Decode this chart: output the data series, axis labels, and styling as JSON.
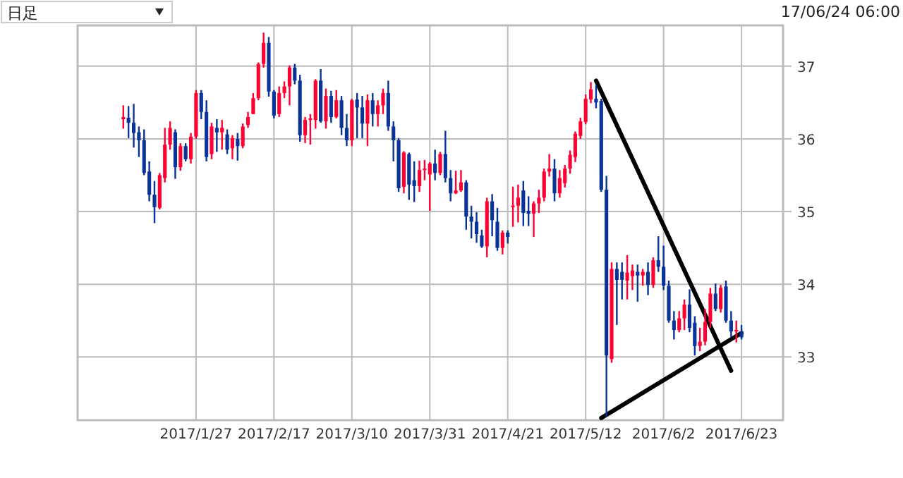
{
  "chart_data": {
    "type": "candlestick",
    "title": "日足",
    "subtitle": "17/06/24 06:00",
    "categories": [
      null,
      null,
      null,
      null,
      null,
      null,
      null,
      null,
      null,
      null,
      null,
      null,
      null,
      null,
      "2017/1/27",
      null,
      null,
      null,
      null,
      null,
      null,
      null,
      null,
      null,
      null,
      null,
      null,
      null,
      null,
      "2017/2/17",
      null,
      null,
      null,
      null,
      null,
      null,
      null,
      null,
      null,
      null,
      null,
      null,
      null,
      null,
      "2017/3/10",
      null,
      null,
      null,
      null,
      null,
      null,
      null,
      null,
      null,
      null,
      null,
      null,
      null,
      null,
      "2017/3/31",
      null,
      null,
      null,
      null,
      null,
      null,
      null,
      null,
      null,
      null,
      null,
      null,
      null,
      null,
      "2017/4/21",
      null,
      null,
      null,
      null,
      null,
      null,
      null,
      null,
      null,
      null,
      null,
      null,
      null,
      null,
      "2017/5/12",
      null,
      null,
      null,
      null,
      null,
      null,
      null,
      null,
      null,
      null,
      null,
      null,
      null,
      null,
      "2017/6/2",
      null,
      null,
      null,
      null,
      null,
      null,
      null,
      null,
      null,
      null,
      null,
      null,
      null,
      null,
      "2017/6/23"
    ],
    "ohlc": [
      [
        36.27,
        36.46,
        36.14,
        36.3
      ],
      [
        36.29,
        36.45,
        36.01,
        36.22
      ],
      [
        36.22,
        36.48,
        35.88,
        36.08
      ],
      [
        36.09,
        36.17,
        35.75,
        35.98
      ],
      [
        35.98,
        36.13,
        35.5,
        35.53
      ],
      [
        35.55,
        35.69,
        35.14,
        35.23
      ],
      [
        35.23,
        35.42,
        34.84,
        35.06
      ],
      [
        35.05,
        35.53,
        35.03,
        35.5
      ],
      [
        35.46,
        36.15,
        35.4,
        35.92
      ],
      [
        35.92,
        36.24,
        35.85,
        36.15
      ],
      [
        36.09,
        36.13,
        35.45,
        35.61
      ],
      [
        35.61,
        35.94,
        35.56,
        35.9
      ],
      [
        35.9,
        35.94,
        35.69,
        35.72
      ],
      [
        35.72,
        36.08,
        35.66,
        36.03
      ],
      [
        36.03,
        36.67,
        36.0,
        36.63
      ],
      [
        36.63,
        36.67,
        36.27,
        36.37
      ],
      [
        36.37,
        36.53,
        35.69,
        35.75
      ],
      [
        35.79,
        36.22,
        35.72,
        36.17
      ],
      [
        36.15,
        36.27,
        35.82,
        36.09
      ],
      [
        36.09,
        36.26,
        35.85,
        36.15
      ],
      [
        36.06,
        36.13,
        35.79,
        35.85
      ],
      [
        35.87,
        36.05,
        35.72,
        36.01
      ],
      [
        36.0,
        36.08,
        35.7,
        35.9
      ],
      [
        35.9,
        36.21,
        35.87,
        36.17
      ],
      [
        36.19,
        36.37,
        36.15,
        36.3
      ],
      [
        36.34,
        36.63,
        36.34,
        36.56
      ],
      [
        36.56,
        37.05,
        36.53,
        37.03
      ],
      [
        37.03,
        37.46,
        36.98,
        37.32
      ],
      [
        37.32,
        37.4,
        36.58,
        36.65
      ],
      [
        36.65,
        36.67,
        36.28,
        36.32
      ],
      [
        36.34,
        36.72,
        36.3,
        36.63
      ],
      [
        36.63,
        36.79,
        36.56,
        36.72
      ],
      [
        36.72,
        37.01,
        36.46,
        36.98
      ],
      [
        36.98,
        37.03,
        36.75,
        36.8
      ],
      [
        36.8,
        36.88,
        35.96,
        36.05
      ],
      [
        36.05,
        36.3,
        35.94,
        36.26
      ],
      [
        36.26,
        36.34,
        35.92,
        36.28
      ],
      [
        36.26,
        36.82,
        36.14,
        36.8
      ],
      [
        36.8,
        36.96,
        36.22,
        36.24
      ],
      [
        36.24,
        36.69,
        36.14,
        36.59
      ],
      [
        36.59,
        36.66,
        36.22,
        36.3
      ],
      [
        36.3,
        36.67,
        36.28,
        36.53
      ],
      [
        36.53,
        36.59,
        36.05,
        36.15
      ],
      [
        36.15,
        36.34,
        35.9,
        35.98
      ],
      [
        35.98,
        36.55,
        35.9,
        36.53
      ],
      [
        36.54,
        36.63,
        36.01,
        36.43
      ],
      [
        36.43,
        36.59,
        36.01,
        36.21
      ],
      [
        36.21,
        36.61,
        35.9,
        36.53
      ],
      [
        36.53,
        36.63,
        36.17,
        36.34
      ],
      [
        36.34,
        36.53,
        36.17,
        36.46
      ],
      [
        36.46,
        36.69,
        36.34,
        36.63
      ],
      [
        36.63,
        36.8,
        36.11,
        36.17
      ],
      [
        36.17,
        36.24,
        35.69,
        35.98
      ],
      [
        35.98,
        36.01,
        35.27,
        35.32
      ],
      [
        35.34,
        35.83,
        35.25,
        35.81
      ],
      [
        35.79,
        35.81,
        35.16,
        35.37
      ],
      [
        35.43,
        35.69,
        35.13,
        35.35
      ],
      [
        35.35,
        35.7,
        35.27,
        35.57
      ],
      [
        35.57,
        35.71,
        35.43,
        35.59
      ],
      [
        35.51,
        35.68,
        35.01,
        35.66
      ],
      [
        35.66,
        35.85,
        35.43,
        35.53
      ],
      [
        35.53,
        35.82,
        35.5,
        35.79
      ],
      [
        35.79,
        36.11,
        35.4,
        35.46
      ],
      [
        35.46,
        35.57,
        35.14,
        35.25
      ],
      [
        35.25,
        35.56,
        35.24,
        35.29
      ],
      [
        35.29,
        35.57,
        35.27,
        35.4
      ],
      [
        35.4,
        35.43,
        34.75,
        34.93
      ],
      [
        34.93,
        35.08,
        34.63,
        34.86
      ],
      [
        34.86,
        34.99,
        34.57,
        34.69
      ],
      [
        34.67,
        34.75,
        34.5,
        34.52
      ],
      [
        34.52,
        35.19,
        34.37,
        35.14
      ],
      [
        35.14,
        35.24,
        34.66,
        34.88
      ],
      [
        34.86,
        35.05,
        34.46,
        34.5
      ],
      [
        34.5,
        34.74,
        34.41,
        34.71
      ],
      [
        34.71,
        34.74,
        34.56,
        34.65
      ],
      [
        35.06,
        35.34,
        34.79,
        35.08
      ],
      [
        35.08,
        35.37,
        34.85,
        35.19
      ],
      [
        35.29,
        35.42,
        34.8,
        34.98
      ],
      [
        35.01,
        35.21,
        34.8,
        34.97
      ],
      [
        34.97,
        35.14,
        34.65,
        35.11
      ],
      [
        35.11,
        35.3,
        34.98,
        35.19
      ],
      [
        35.19,
        35.59,
        35.14,
        35.55
      ],
      [
        35.55,
        35.79,
        35.48,
        35.59
      ],
      [
        35.59,
        35.72,
        35.14,
        35.25
      ],
      [
        35.25,
        35.57,
        35.19,
        35.46
      ],
      [
        35.39,
        35.64,
        35.33,
        35.59
      ],
      [
        35.59,
        35.84,
        35.52,
        35.78
      ],
      [
        35.75,
        36.1,
        35.68,
        36.07
      ],
      [
        36.04,
        36.29,
        36.0,
        36.24
      ],
      [
        36.23,
        36.61,
        36.2,
        36.55
      ],
      [
        36.54,
        36.78,
        36.49,
        36.68
      ],
      [
        36.55,
        36.74,
        36.42,
        36.5
      ],
      [
        36.52,
        36.55,
        35.27,
        35.3
      ],
      [
        35.3,
        35.49,
        32.18,
        33.02
      ],
      [
        32.97,
        34.3,
        32.92,
        34.21
      ],
      [
        34.21,
        34.3,
        33.44,
        34.06
      ],
      [
        34.17,
        34.3,
        33.79,
        34.06
      ],
      [
        34.05,
        34.4,
        33.79,
        34.16
      ],
      [
        34.11,
        34.27,
        33.92,
        34.19
      ],
      [
        34.17,
        34.27,
        33.76,
        34.12
      ],
      [
        34.12,
        34.21,
        33.98,
        34.17
      ],
      [
        34.17,
        34.3,
        33.85,
        33.99
      ],
      [
        33.99,
        34.37,
        33.95,
        34.33
      ],
      [
        34.33,
        34.66,
        34.17,
        34.24
      ],
      [
        34.24,
        34.53,
        33.92,
        33.98
      ],
      [
        33.98,
        34.05,
        33.47,
        33.5
      ],
      [
        33.5,
        33.63,
        33.24,
        33.37
      ],
      [
        33.37,
        33.63,
        33.34,
        33.53
      ],
      [
        33.53,
        33.79,
        33.37,
        33.72
      ],
      [
        33.72,
        33.93,
        33.34,
        33.4
      ],
      [
        33.47,
        33.56,
        33.02,
        33.15
      ],
      [
        33.15,
        33.4,
        33.08,
        33.21
      ],
      [
        33.21,
        33.66,
        33.16,
        33.48
      ],
      [
        33.48,
        33.95,
        33.4,
        33.87
      ],
      [
        33.87,
        34.01,
        33.63,
        33.66
      ],
      [
        33.66,
        33.99,
        33.61,
        33.95
      ],
      [
        33.97,
        34.05,
        33.47,
        33.5
      ],
      [
        33.5,
        33.63,
        33.27,
        33.35
      ],
      [
        33.35,
        33.5,
        33.2,
        33.37
      ],
      [
        33.35,
        33.44,
        33.24,
        33.27
      ]
    ],
    "colors": [
      "#ff0033",
      "#0a3399",
      "#0a3399",
      "#0a3399",
      "#0a3399",
      "#0a3399",
      "#0a3399",
      "#ff0033",
      "#ff0033",
      "#ff0033",
      "#0a3399",
      "#ff0033",
      "#0a3399",
      "#ff0033",
      "#ff0033",
      "#0a3399",
      "#0a3399",
      "#ff0033",
      "#0a3399",
      "#ff0033",
      "#0a3399",
      "#ff0033",
      "#0a3399",
      "#ff0033",
      "#ff0033",
      "#ff0033",
      "#ff0033",
      "#ff0033",
      "#0a3399",
      "#0a3399",
      "#ff0033",
      "#ff0033",
      "#ff0033",
      "#0a3399",
      "#0a3399",
      "#ff0033",
      "#ff0033",
      "#ff0033",
      "#0a3399",
      "#ff0033",
      "#0a3399",
      "#ff0033",
      "#0a3399",
      "#0a3399",
      "#ff0033",
      "#0a3399",
      "#0a3399",
      "#ff0033",
      "#0a3399",
      "#ff0033",
      "#ff0033",
      "#0a3399",
      "#0a3399",
      "#0a3399",
      "#ff0033",
      "#0a3399",
      "#0a3399",
      "#ff0033",
      "#ff0033",
      "#ff0033",
      "#0a3399",
      "#ff0033",
      "#0a3399",
      "#0a3399",
      "#ff0033",
      "#ff0033",
      "#0a3399",
      "#0a3399",
      "#0a3399",
      "#0a3399",
      "#ff0033",
      "#0a3399",
      "#0a3399",
      "#ff0033",
      "#0a3399",
      "#ff0033",
      "#ff0033",
      "#0a3399",
      "#0a3399",
      "#ff0033",
      "#ff0033",
      "#ff0033",
      "#ff0033",
      "#0a3399",
      "#ff0033",
      "#ff0033",
      "#ff0033",
      "#ff0033",
      "#ff0033",
      "#ff0033",
      "#ff0033",
      "#0a3399",
      "#0a3399",
      "#0a3399",
      "#ff0033",
      "#0a3399",
      "#0a3399",
      "#ff0033",
      "#ff0033",
      "#0a3399",
      "#ff0033",
      "#0a3399",
      "#ff0033",
      "#0a3399",
      "#0a3399",
      "#0a3399",
      "#0a3399",
      "#ff0033",
      "#ff0033",
      "#0a3399",
      "#0a3399",
      "#ff0033",
      "#ff0033",
      "#ff0033",
      "#0a3399",
      "#ff0033",
      "#0a3399",
      "#0a3399",
      "#ff0033",
      "#0a3399"
    ],
    "series": [
      {
        "type": "line",
        "color": "#000000",
        "values": [
          null,
          null,
          null,
          null,
          null,
          null,
          null,
          null,
          null,
          null,
          null,
          null,
          null,
          null,
          null,
          null,
          null,
          null,
          null,
          null,
          null,
          null,
          null,
          null,
          null,
          null,
          null,
          null,
          null,
          null,
          null,
          null,
          null,
          null,
          null,
          null,
          null,
          null,
          null,
          null,
          null,
          null,
          null,
          null,
          null,
          null,
          null,
          null,
          null,
          null,
          null,
          null,
          null,
          null,
          null,
          null,
          null,
          null,
          null,
          null,
          null,
          null,
          null,
          null,
          null,
          null,
          null,
          null,
          null,
          null,
          null,
          null,
          null,
          null,
          null,
          null,
          null,
          null,
          null,
          null,
          null,
          null,
          null,
          null,
          null,
          null,
          null,
          null,
          null,
          null,
          null,
          36.8,
          null,
          null,
          null,
          null,
          null,
          null,
          null,
          null,
          null,
          null,
          null,
          null,
          null,
          null,
          null,
          null,
          null,
          null,
          null,
          null,
          null,
          null,
          null,
          null,
          null,
          32.81,
          null,
          null
        ]
      },
      {
        "type": "line",
        "color": "#000000",
        "values": [
          null,
          null,
          null,
          null,
          null,
          null,
          null,
          null,
          null,
          null,
          null,
          null,
          null,
          null,
          null,
          null,
          null,
          null,
          null,
          null,
          null,
          null,
          null,
          null,
          null,
          null,
          null,
          null,
          null,
          null,
          null,
          null,
          null,
          null,
          null,
          null,
          null,
          null,
          null,
          null,
          null,
          null,
          null,
          null,
          null,
          null,
          null,
          null,
          null,
          null,
          null,
          null,
          null,
          null,
          null,
          null,
          null,
          null,
          null,
          null,
          null,
          null,
          null,
          null,
          null,
          null,
          null,
          null,
          null,
          null,
          null,
          null,
          null,
          null,
          null,
          null,
          null,
          null,
          null,
          null,
          null,
          null,
          null,
          null,
          null,
          null,
          null,
          null,
          null,
          null,
          null,
          null,
          32.16,
          null,
          null,
          null,
          null,
          null,
          null,
          null,
          null,
          null,
          null,
          null,
          null,
          null,
          null,
          null,
          null,
          null,
          null,
          null,
          null,
          null,
          null,
          null,
          null,
          null,
          null,
          33.33
        ]
      }
    ],
    "ylim": [
      32.13,
      37.56
    ],
    "yticks": [
      33,
      34,
      35,
      36,
      37
    ],
    "grid": true
  }
}
